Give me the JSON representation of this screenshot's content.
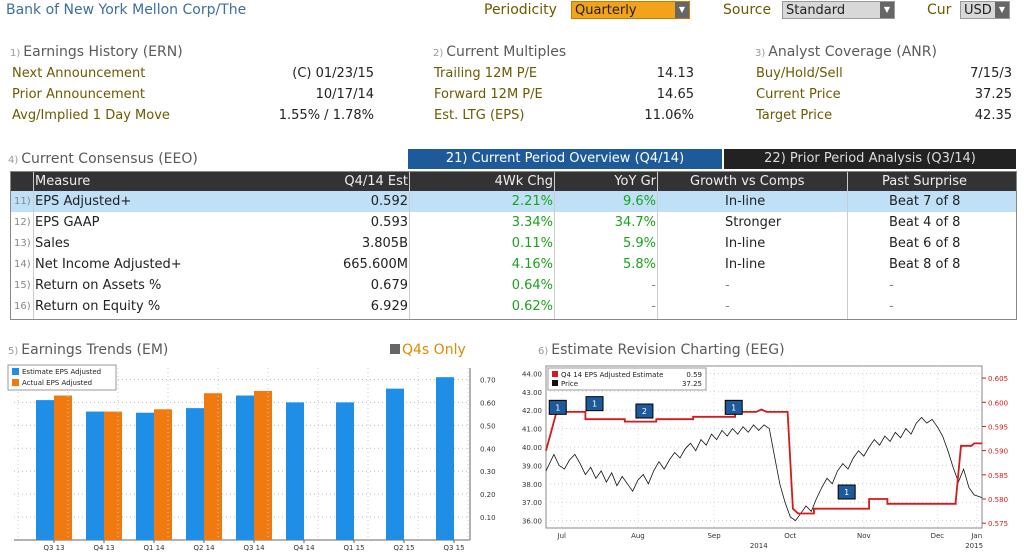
{
  "header": {
    "company": "Bank of New York Mellon Corp/The",
    "periodicity_label": "Periodicity",
    "periodicity_value": "Quarterly",
    "source_label": "Source",
    "source_value": "Standard",
    "cur_label": "Cur",
    "cur_value": "USD"
  },
  "earnings_history": {
    "num": "1)",
    "title": "Earnings History (ERN)",
    "rows": [
      {
        "label": "Next Announcement",
        "value": "(C)  01/23/15"
      },
      {
        "label": "Prior Announcement",
        "value": "10/17/14"
      },
      {
        "label": "Avg/Implied 1 Day Move",
        "value": "1.55% / 1.78%"
      }
    ]
  },
  "current_multiples": {
    "num": "2)",
    "title": "Current Multiples",
    "rows": [
      {
        "label": "Trailing 12M P/E",
        "value": "14.13"
      },
      {
        "label": "Forward 12M P/E",
        "value": "14.65"
      },
      {
        "label": "Est. LTG (EPS)",
        "value": "11.06%"
      }
    ]
  },
  "analyst_coverage": {
    "num": "3)",
    "title": "Analyst Coverage (ANR)",
    "rows": [
      {
        "label": "Buy/Hold/Sell",
        "value": "7/15/3"
      },
      {
        "label": "Current Price",
        "value": "37.25"
      },
      {
        "label": "Target Price",
        "value": "42.35"
      }
    ]
  },
  "consensus": {
    "num": "4)",
    "title": "Current Consensus (EEO)",
    "tab1": "21) Current Period Overview (Q4/14)",
    "tab2": "22) Prior Period Analysis (Q3/14)",
    "headers": [
      "Measure",
      "Q4/14 Est",
      "4Wk Chg",
      "YoY Gr",
      "Growth vs Comps",
      "Past Surprise"
    ],
    "rows": [
      {
        "num": "11)",
        "measure": "EPS Adjusted+",
        "est": "0.592",
        "chg": "2.21%",
        "yoy": "9.6%",
        "comps": "In-line",
        "surprise": "Beat 7 of 8"
      },
      {
        "num": "12)",
        "measure": "EPS GAAP",
        "est": "0.593",
        "chg": "3.34%",
        "yoy": "34.7%",
        "comps": "Stronger",
        "surprise": "Beat 4 of 8"
      },
      {
        "num": "13)",
        "measure": "Sales",
        "est": "3.805B",
        "chg": "0.11%",
        "yoy": "5.9%",
        "comps": "In-line",
        "surprise": "Beat 6 of 8"
      },
      {
        "num": "14)",
        "measure": "Net Income Adjusted+",
        "est": "665.600M",
        "chg": "4.16%",
        "yoy": "5.8%",
        "comps": "In-line",
        "surprise": "Beat 8 of 8"
      },
      {
        "num": "15)",
        "measure": "Return on Assets %",
        "est": "0.679",
        "chg": "0.64%",
        "yoy": "-",
        "comps": "-",
        "surprise": "-"
      },
      {
        "num": "16)",
        "measure": "Return on Equity %",
        "est": "6.929",
        "chg": "0.62%",
        "yoy": "-",
        "comps": "-",
        "surprise": "-"
      }
    ]
  },
  "earnings_trends": {
    "num": "5)",
    "title": "Earnings Trends (EM)",
    "q4s_label": "Q4s Only"
  },
  "revision_chart": {
    "num": "6)",
    "title": "Estimate Revision Charting (EEG)"
  },
  "chart_data": [
    {
      "type": "bar",
      "categories": [
        "Q3 13",
        "Q4 13",
        "Q1 14",
        "Q2 14",
        "Q3 14",
        "Q4 14",
        "Q1 15",
        "Q2 15",
        "Q3 15"
      ],
      "series": [
        {
          "name": "Estimate EPS Adjusted",
          "values": [
            0.61,
            0.56,
            0.555,
            0.575,
            0.63,
            0.6,
            0.6,
            0.66,
            0.71
          ],
          "color": "#1e8ee6"
        },
        {
          "name": "Actual EPS Adjusted",
          "values": [
            0.63,
            0.56,
            0.57,
            0.64,
            0.65,
            null,
            null,
            null,
            null
          ],
          "color": "#f07a10"
        }
      ],
      "yticks": [
        "0.10",
        "0.20",
        "0.30",
        "0.40",
        "0.50",
        "0.60",
        "0.70"
      ],
      "ylim": [
        0,
        0.75
      ],
      "legend": "top-left"
    },
    {
      "type": "line",
      "x_labels": [
        "Jul",
        "Aug",
        "Sep",
        "Oct",
        "Nov",
        "Dec",
        "Jan"
      ],
      "x_year_labels": [
        "2014",
        "2015"
      ],
      "legend_entries": [
        {
          "name": "Q4 14 EPS Adjusted Estimate",
          "value": "0.59",
          "color": "#d41a1a"
        },
        {
          "name": "Price",
          "value": "37.25",
          "color": "#111111"
        }
      ],
      "left_ticks": [
        "36.00",
        "37.00",
        "38.00",
        "39.00",
        "40.00",
        "41.00",
        "42.00",
        "43.00",
        "44.00"
      ],
      "left_range": [
        35.6,
        44.4
      ],
      "right_ticks": [
        "0.575",
        "0.580",
        "0.585",
        "0.590",
        "0.595",
        "0.600",
        "0.605"
      ],
      "right_range": [
        0.574,
        0.6075
      ],
      "estimate": [
        [
          0,
          0.59
        ],
        [
          0.2,
          0.594
        ],
        [
          0.4,
          0.598
        ],
        [
          1.5,
          0.598
        ],
        [
          1.5,
          0.5965
        ],
        [
          3,
          0.5965
        ],
        [
          3,
          0.596
        ],
        [
          4.2,
          0.596
        ],
        [
          4.2,
          0.5965
        ],
        [
          5.6,
          0.5965
        ],
        [
          5.6,
          0.597
        ],
        [
          7.2,
          0.597
        ],
        [
          7.2,
          0.598
        ],
        [
          8,
          0.598
        ],
        [
          8.2,
          0.5985
        ],
        [
          8.4,
          0.598
        ],
        [
          9.2,
          0.598
        ],
        [
          9.4,
          0.578
        ],
        [
          9.6,
          0.577
        ],
        [
          10.2,
          0.577
        ],
        [
          10.2,
          0.578
        ],
        [
          12.3,
          0.578
        ],
        [
          12.3,
          0.58
        ],
        [
          13.0,
          0.58
        ],
        [
          13.0,
          0.579
        ],
        [
          15.6,
          0.579
        ],
        [
          15.6,
          0.5795
        ],
        [
          15.8,
          0.591
        ],
        [
          16.2,
          0.591
        ],
        [
          16.3,
          0.5915
        ],
        [
          16.6,
          0.5915
        ]
      ],
      "price": [
        [
          0,
          38.7
        ],
        [
          0.3,
          39.6
        ],
        [
          0.5,
          39.0
        ],
        [
          0.7,
          38.8
        ],
        [
          0.9,
          39.3
        ],
        [
          1.1,
          39.6
        ],
        [
          1.3,
          39.1
        ],
        [
          1.5,
          38.5
        ],
        [
          1.7,
          38.9
        ],
        [
          1.9,
          38.3
        ],
        [
          2.1,
          38.7
        ],
        [
          2.3,
          38.1
        ],
        [
          2.5,
          38.6
        ],
        [
          2.7,
          37.9
        ],
        [
          2.9,
          38.4
        ],
        [
          3.1,
          38.0
        ],
        [
          3.3,
          37.6
        ],
        [
          3.5,
          38.2
        ],
        [
          3.7,
          38.5
        ],
        [
          3.9,
          38.0
        ],
        [
          4.1,
          38.7
        ],
        [
          4.3,
          39.2
        ],
        [
          4.5,
          38.8
        ],
        [
          4.7,
          39.3
        ],
        [
          4.9,
          39.7
        ],
        [
          5.1,
          39.4
        ],
        [
          5.3,
          39.9
        ],
        [
          5.5,
          40.2
        ],
        [
          5.7,
          39.8
        ],
        [
          5.9,
          40.4
        ],
        [
          6.1,
          40.1
        ],
        [
          6.3,
          40.7
        ],
        [
          6.5,
          40.4
        ],
        [
          6.7,
          40.9
        ],
        [
          6.9,
          40.6
        ],
        [
          7.1,
          41.0
        ],
        [
          7.3,
          40.7
        ],
        [
          7.5,
          41.1
        ],
        [
          7.7,
          40.8
        ],
        [
          7.9,
          41.2
        ],
        [
          8.1,
          40.9
        ],
        [
          8.3,
          41.2
        ],
        [
          8.5,
          41.0
        ],
        [
          8.7,
          39.5
        ],
        [
          8.9,
          38.0
        ],
        [
          9.1,
          37.0
        ],
        [
          9.3,
          36.2
        ],
        [
          9.5,
          36.0
        ],
        [
          9.7,
          36.4
        ],
        [
          9.9,
          36.8
        ],
        [
          10.1,
          36.5
        ],
        [
          10.3,
          37.2
        ],
        [
          10.5,
          37.8
        ],
        [
          10.7,
          38.3
        ],
        [
          10.9,
          38.0
        ],
        [
          11.1,
          38.7
        ],
        [
          11.3,
          39.1
        ],
        [
          11.5,
          38.8
        ],
        [
          11.7,
          39.4
        ],
        [
          11.9,
          39.8
        ],
        [
          12.1,
          39.5
        ],
        [
          12.3,
          40.0
        ],
        [
          12.5,
          40.4
        ],
        [
          12.7,
          40.1
        ],
        [
          12.9,
          40.6
        ],
        [
          13.1,
          40.3
        ],
        [
          13.3,
          40.8
        ],
        [
          13.5,
          40.5
        ],
        [
          13.7,
          41.0
        ],
        [
          13.9,
          40.7
        ],
        [
          14.1,
          41.3
        ],
        [
          14.3,
          41.6
        ],
        [
          14.5,
          41.3
        ],
        [
          14.7,
          41.5
        ],
        [
          14.9,
          41.1
        ],
        [
          15.1,
          40.6
        ],
        [
          15.3,
          39.8
        ],
        [
          15.5,
          38.9
        ],
        [
          15.7,
          38.1
        ],
        [
          15.9,
          38.8
        ],
        [
          16.1,
          37.8
        ],
        [
          16.3,
          37.4
        ],
        [
          16.6,
          37.25
        ]
      ],
      "event_markers": [
        "1",
        "1",
        "2",
        "1",
        "1"
      ]
    }
  ]
}
